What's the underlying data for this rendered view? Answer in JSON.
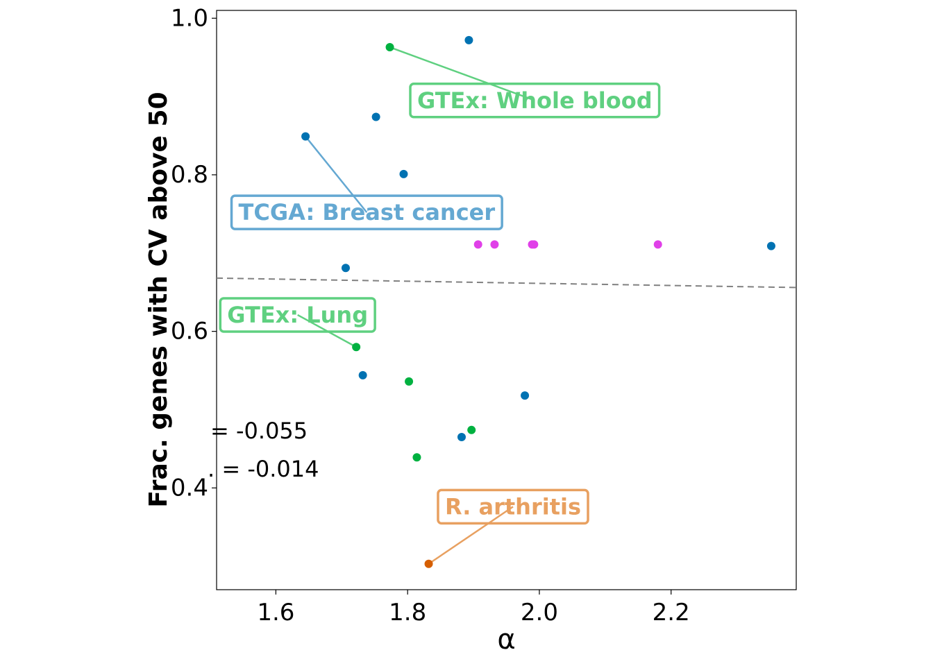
{
  "chart_data": {
    "type": "scatter",
    "xlabel": "α",
    "ylabel": "Frac. genes with CV above 50",
    "xlim": [
      1.51,
      2.39
    ],
    "ylim": [
      0.27,
      1.01
    ],
    "xticks": [
      1.6,
      1.8,
      2.0,
      2.2
    ],
    "xtick_labels": [
      "1.6",
      "1.8",
      "2.0",
      "2.2"
    ],
    "yticks": [
      0.4,
      0.6,
      0.8,
      1.0
    ],
    "ytick_labels": [
      "0.4",
      "0.6",
      "0.8",
      "1.0"
    ],
    "grid": false,
    "points": [
      {
        "x": 1.773,
        "y": 0.963,
        "color": "#00b140"
      },
      {
        "x": 1.893,
        "y": 0.972,
        "color": "#0072b2"
      },
      {
        "x": 1.752,
        "y": 0.874,
        "color": "#0072b2"
      },
      {
        "x": 1.645,
        "y": 0.849,
        "color": "#0072b2"
      },
      {
        "x": 1.794,
        "y": 0.801,
        "color": "#0072b2"
      },
      {
        "x": 1.907,
        "y": 0.711,
        "color": "#e040e8"
      },
      {
        "x": 1.932,
        "y": 0.711,
        "color": "#e040e8"
      },
      {
        "x": 1.989,
        "y": 0.711,
        "color": "#e040e8"
      },
      {
        "x": 1.992,
        "y": 0.711,
        "color": "#e040e8"
      },
      {
        "x": 2.18,
        "y": 0.711,
        "color": "#e040e8"
      },
      {
        "x": 2.352,
        "y": 0.709,
        "color": "#0072b2"
      },
      {
        "x": 1.706,
        "y": 0.681,
        "color": "#0072b2"
      },
      {
        "x": 1.722,
        "y": 0.58,
        "color": "#00b140"
      },
      {
        "x": 1.732,
        "y": 0.544,
        "color": "#0072b2"
      },
      {
        "x": 1.802,
        "y": 0.536,
        "color": "#00b140"
      },
      {
        "x": 1.978,
        "y": 0.518,
        "color": "#0072b2"
      },
      {
        "x": 1.897,
        "y": 0.474,
        "color": "#00b140"
      },
      {
        "x": 1.882,
        "y": 0.465,
        "color": "#0072b2"
      },
      {
        "x": 1.814,
        "y": 0.439,
        "color": "#00b140"
      },
      {
        "x": 1.832,
        "y": 0.303,
        "color": "#d55e00"
      }
    ],
    "trend_line": {
      "x": [
        1.51,
        2.39
      ],
      "y": [
        0.668,
        0.656
      ],
      "style": "dashed",
      "color": "#808080"
    },
    "stats": [
      "= -0.055",
      ". = -0.014"
    ],
    "annotations": [
      {
        "text": "GTEx: Whole blood",
        "point_x": 1.773,
        "point_y": 0.963,
        "text_x": 1.993,
        "text_y": 0.895,
        "color": "#5fd080"
      },
      {
        "text": "TCGA: Breast cancer",
        "point_x": 1.645,
        "point_y": 0.849,
        "text_x": 1.738,
        "text_y": 0.752,
        "color": "#64a8d2"
      },
      {
        "text": "GTEx: Lung",
        "point_x": 1.722,
        "point_y": 0.58,
        "text_x": 1.633,
        "text_y": 0.621,
        "color": "#5fd080"
      },
      {
        "text": "R. arthritis",
        "point_x": 1.832,
        "point_y": 0.303,
        "text_x": 1.96,
        "text_y": 0.376,
        "color": "#e8a060"
      }
    ]
  }
}
